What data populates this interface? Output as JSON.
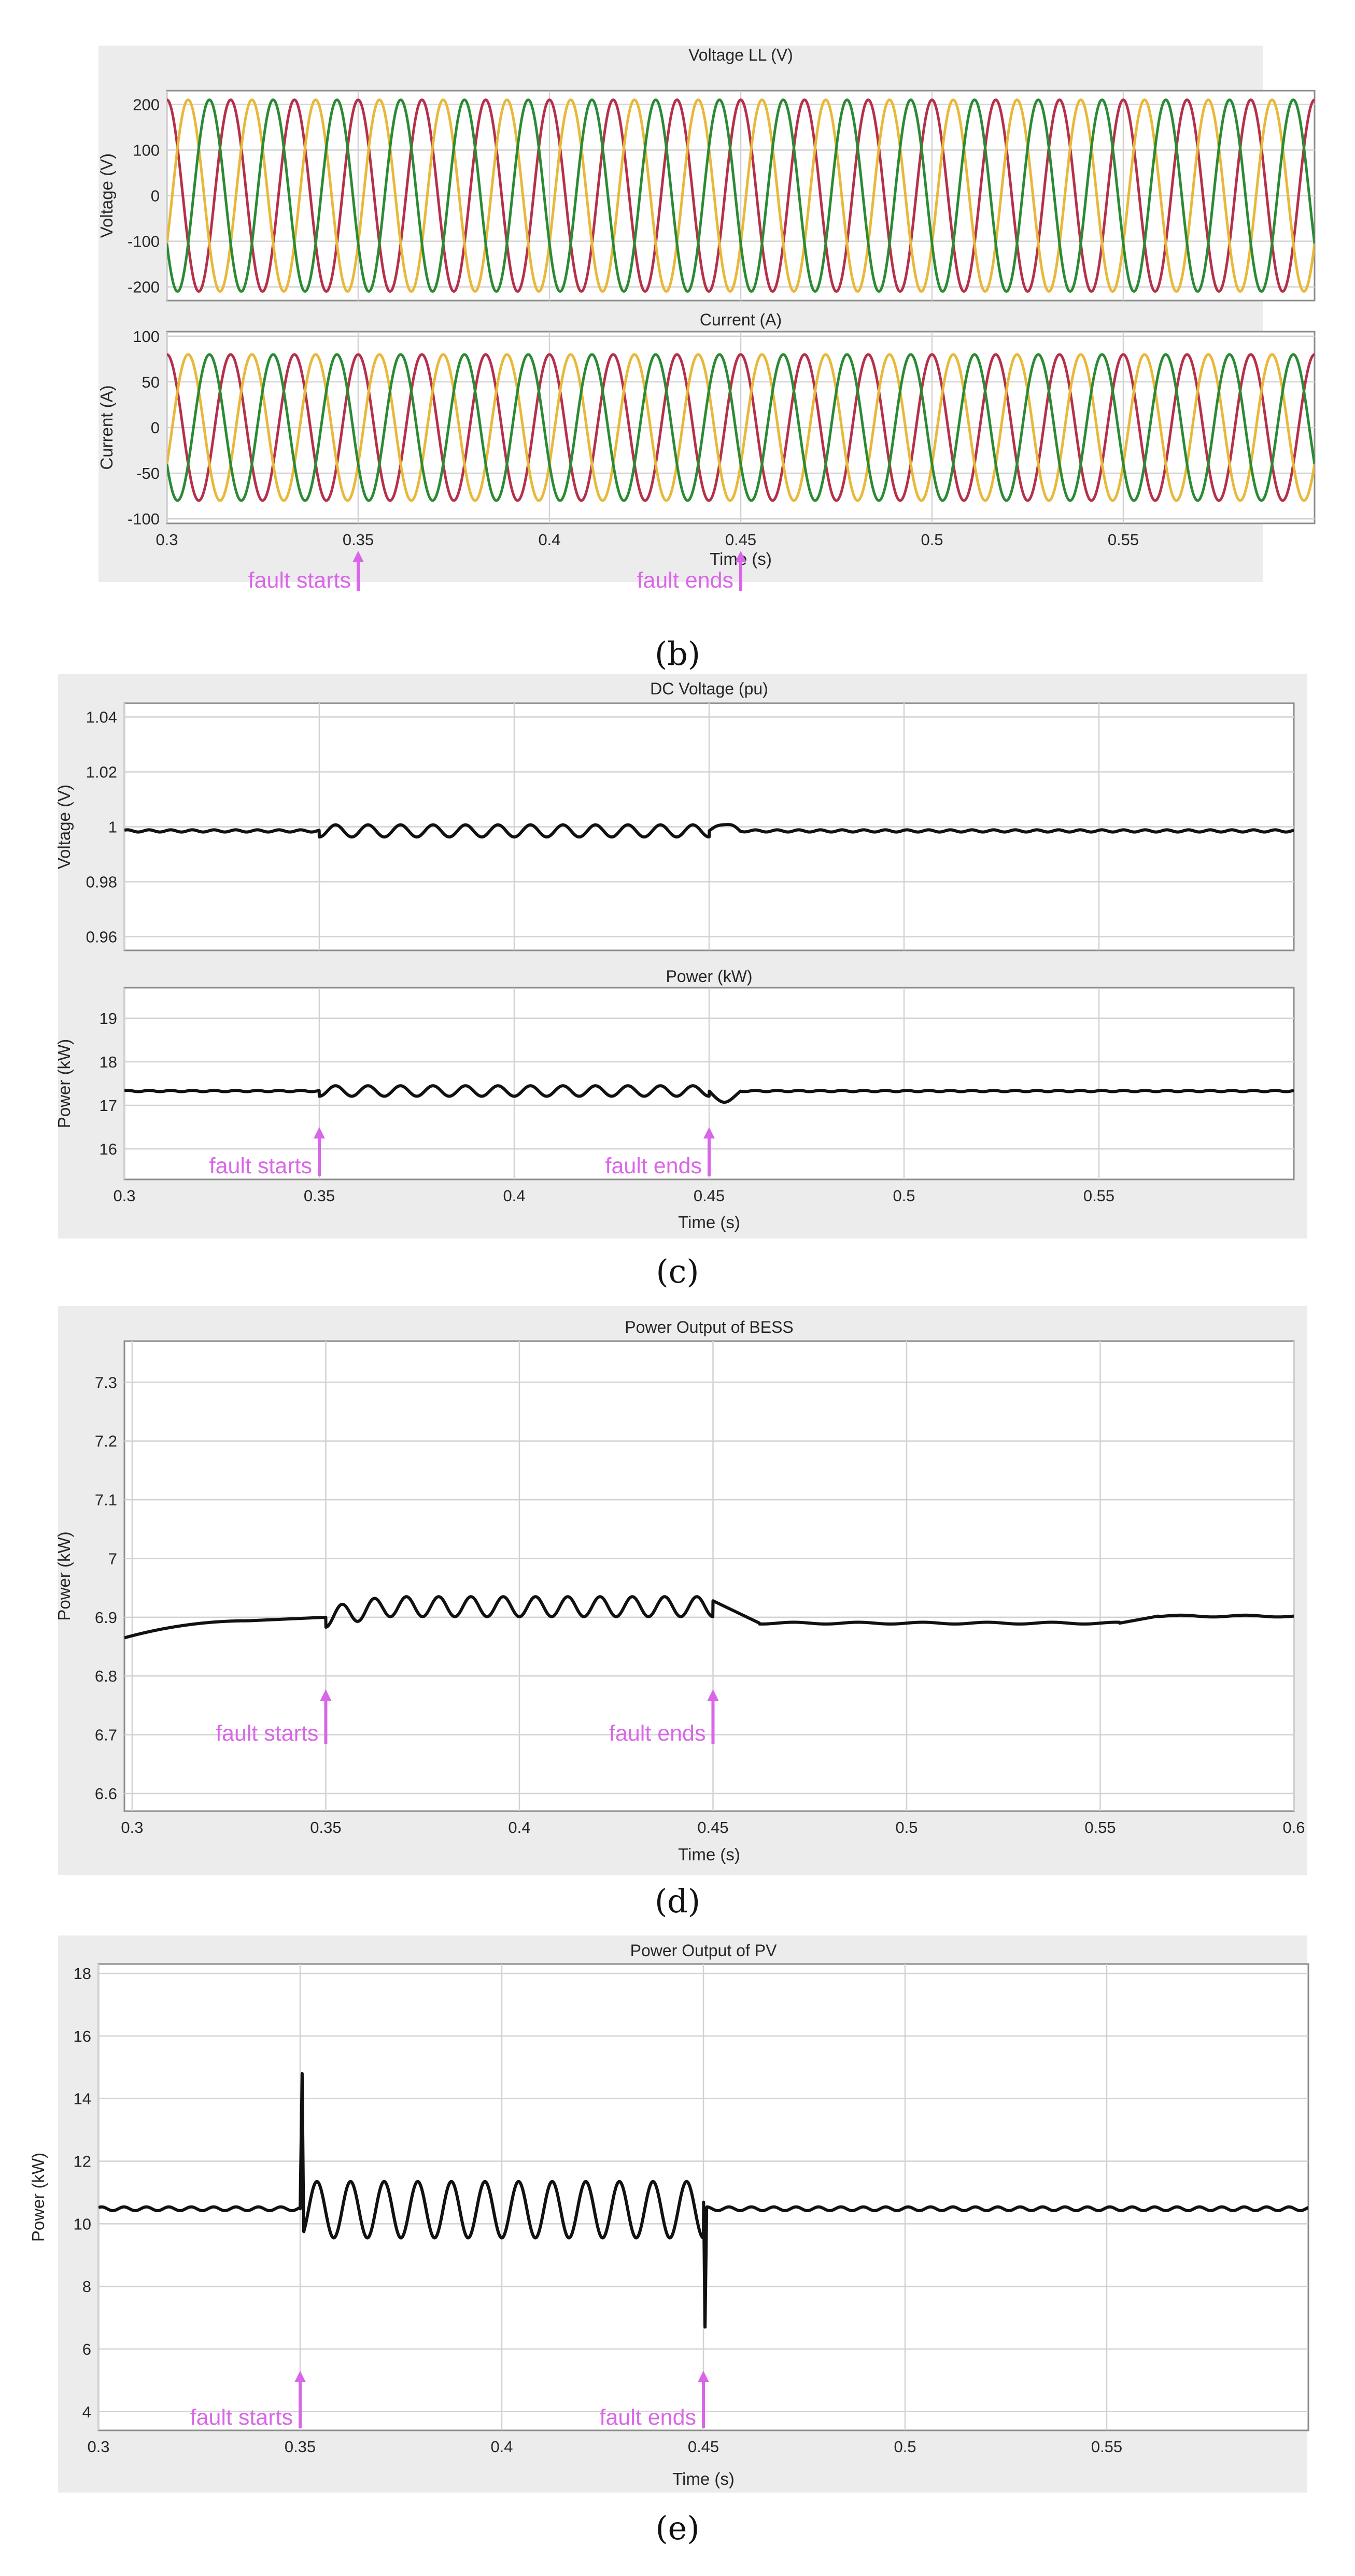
{
  "figure_captions": [
    "(b)",
    "(c)",
    "(d)",
    "(e)"
  ],
  "chart_data": [
    {
      "id": "b",
      "type": "line",
      "caption": "(b)",
      "annotations": [
        {
          "text": "fault starts",
          "x": 0.35
        },
        {
          "text": "fault ends",
          "x": 0.45
        }
      ],
      "subplots": [
        {
          "title": "Voltage LL (V)",
          "ylabel": "Voltage (V)",
          "xlabel": "",
          "xlim": [
            0.3,
            0.6
          ],
          "ylim": [
            -230,
            230
          ],
          "xticks": [
            0.3,
            0.35,
            0.4,
            0.45,
            0.5,
            0.55
          ],
          "xticklabels": [],
          "yticks": [
            -200,
            -100,
            0,
            100,
            200
          ],
          "yticklabels": [
            "-200",
            "-100",
            "0",
            "100",
            "200"
          ],
          "grid": true,
          "series": [
            {
              "color": "#b5304a",
              "waveform": "sine",
              "amplitude": 210,
              "frequency_hz": 60,
              "phase_deg": 90
            },
            {
              "color": "#e8b83a",
              "waveform": "sine",
              "amplitude": 210,
              "frequency_hz": 60,
              "phase_deg": -30
            },
            {
              "color": "#2b8a34",
              "waveform": "sine",
              "amplitude": 210,
              "frequency_hz": 60,
              "phase_deg": 210
            }
          ]
        },
        {
          "title": "Current (A)",
          "ylabel": "Current (A)",
          "xlabel": "Time (s)",
          "xlim": [
            0.3,
            0.6
          ],
          "ylim": [
            -105,
            105
          ],
          "xticks": [
            0.3,
            0.35,
            0.4,
            0.45,
            0.5,
            0.55
          ],
          "xticklabels": [
            "0.3",
            "0.35",
            "0.4",
            "0.45",
            "0.5",
            "0.55"
          ],
          "yticks": [
            -100,
            -50,
            0,
            50,
            100
          ],
          "yticklabels": [
            "-100",
            "-50",
            "0",
            "50",
            "100"
          ],
          "grid": true,
          "series": [
            {
              "color": "#b5304a",
              "waveform": "sine",
              "amplitude": 80,
              "frequency_hz": 60,
              "phase_deg": 90
            },
            {
              "color": "#e8b83a",
              "waveform": "sine",
              "amplitude": 80,
              "frequency_hz": 60,
              "phase_deg": -30
            },
            {
              "color": "#2b8a34",
              "waveform": "sine",
              "amplitude": 80,
              "frequency_hz": 60,
              "phase_deg": 210
            }
          ]
        }
      ]
    },
    {
      "id": "c",
      "type": "line",
      "caption": "(c)",
      "annotations": [
        {
          "text": "fault starts",
          "x": 0.35
        },
        {
          "text": "fault ends",
          "x": 0.45
        }
      ],
      "subplots": [
        {
          "title": "DC Voltage (pu)",
          "ylabel": "Voltage (V)",
          "xlabel": "",
          "xlim": [
            0.3,
            0.6
          ],
          "ylim": [
            0.955,
            1.045
          ],
          "xticks": [
            0.3,
            0.35,
            0.4,
            0.45,
            0.5,
            0.55
          ],
          "xticklabels": [],
          "yticks": [
            0.96,
            0.98,
            1,
            1.02,
            1.04
          ],
          "yticklabels": [
            "0.96",
            "0.98",
            "1",
            "1.02",
            "1.04"
          ],
          "grid": true,
          "series": [
            {
              "color": "#111111",
              "waveform": "fault",
              "baseline": 0.9985,
              "fault_start": 0.35,
              "fault_end": 0.45,
              "fault_mean": 0.9985,
              "fault_amplitude": 0.0022,
              "fault_freq_hz": 120,
              "post_spike": 0.0025,
              "noise_amp": 0.0004
            }
          ]
        },
        {
          "title": "Power (kW)",
          "ylabel": "Power (kW)",
          "xlabel": "Time (s)",
          "xlim": [
            0.3,
            0.6
          ],
          "ylim": [
            15.3,
            19.7
          ],
          "xticks": [
            0.3,
            0.35,
            0.4,
            0.45,
            0.5,
            0.55
          ],
          "xticklabels": [
            "0.3",
            "0.35",
            "0.4",
            "0.45",
            "0.5",
            "0.55"
          ],
          "yticks": [
            16,
            17,
            18,
            19
          ],
          "yticklabels": [
            "16",
            "17",
            "18",
            "19"
          ],
          "grid": true,
          "series": [
            {
              "color": "#111111",
              "waveform": "fault",
              "baseline": 17.33,
              "fault_start": 0.35,
              "fault_end": 0.45,
              "fault_mean": 17.33,
              "fault_amplitude": 0.12,
              "fault_freq_hz": 120,
              "post_spike": -0.25,
              "noise_amp": 0.015
            }
          ]
        }
      ]
    },
    {
      "id": "d",
      "type": "line",
      "caption": "(d)",
      "annotations": [
        {
          "text": "fault starts",
          "x": 0.35
        },
        {
          "text": "fault ends",
          "x": 0.45
        }
      ],
      "subplots": [
        {
          "title": "Power Output of BESS",
          "ylabel": "Power (kW)",
          "xlabel": "Time (s)",
          "xlim": [
            0.298,
            0.6
          ],
          "ylim": [
            6.57,
            7.37
          ],
          "xticks": [
            0.3,
            0.35,
            0.4,
            0.45,
            0.5,
            0.55,
            0.6
          ],
          "xticklabels": [
            "0.3",
            "0.35",
            "0.4",
            "0.45",
            "0.5",
            "0.55",
            "0.6"
          ],
          "yticks": [
            6.6,
            6.7,
            6.8,
            6.9,
            7,
            7.1,
            7.2,
            7.3
          ],
          "yticklabels": [
            "6.6",
            "6.7",
            "6.8",
            "6.9",
            "7",
            "7.1",
            "7.2",
            "7.3"
          ],
          "grid": true,
          "series": [
            {
              "color": "#111111",
              "waveform": "bess",
              "start_value": 6.865,
              "pre_value": 6.9,
              "fault_start": 0.35,
              "fault_end": 0.45,
              "fault_mean": 6.918,
              "fault_amplitude": 0.017,
              "fault_freq_hz": 120,
              "post_value": 6.89,
              "late_value": 6.902
            }
          ]
        }
      ]
    },
    {
      "id": "e",
      "type": "line",
      "caption": "(e)",
      "annotations": [
        {
          "text": "fault starts",
          "x": 0.35
        },
        {
          "text": "fault ends",
          "x": 0.45
        }
      ],
      "subplots": [
        {
          "title": "Power Output of PV",
          "ylabel": "Power (kW)",
          "xlabel": "Time (s)",
          "xlim": [
            0.3,
            0.6
          ],
          "ylim": [
            3.4,
            18.3
          ],
          "xticks": [
            0.3,
            0.35,
            0.4,
            0.45,
            0.5,
            0.55
          ],
          "xticklabels": [
            "0.3",
            "0.35",
            "0.4",
            "0.45",
            "0.5",
            "0.55"
          ],
          "yticks": [
            4,
            6,
            8,
            10,
            12,
            14,
            16,
            18
          ],
          "yticklabels": [
            "4",
            "6",
            "8",
            "10",
            "12",
            "14",
            "16",
            "18"
          ],
          "grid": true,
          "series": [
            {
              "color": "#111111",
              "waveform": "fault",
              "baseline": 10.48,
              "fault_start": 0.35,
              "fault_end": 0.45,
              "fault_mean": 10.45,
              "fault_amplitude": 0.9,
              "fault_freq_hz": 120,
              "start_spike_peak": 14.8,
              "end_spike_low": 6.7,
              "noise_amp": 0.06
            }
          ]
        }
      ]
    }
  ]
}
